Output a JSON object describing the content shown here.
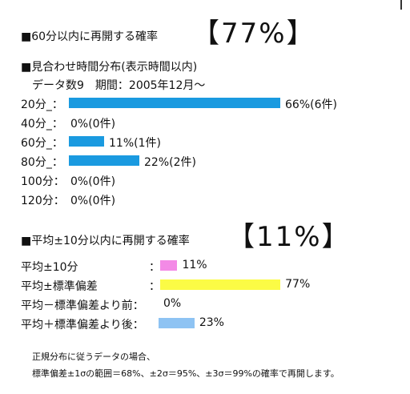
{
  "section1": {
    "heading": "■60分以内に再開する確率",
    "badge": "【77%】"
  },
  "section2": {
    "heading": "■見合わせ時間分布(表示時間以内)",
    "subheading": "データ数9　期間：2005年12月〜"
  },
  "chart_data": [
    {
      "type": "bar",
      "orientation": "horizontal",
      "colors": [
        "#1a9ae0"
      ],
      "categories": [
        "20分_：",
        "40分_：",
        "60分_：",
        "80分_：",
        "100分：",
        "120分："
      ],
      "values": [
        66,
        0,
        11,
        22,
        0,
        0
      ],
      "value_labels": [
        "66%(6件)",
        "0%(0件)",
        "11%(1件)",
        "22%(2件)",
        "0%(0件)",
        "0%(0件)"
      ],
      "counts": [
        6,
        0,
        1,
        2,
        0,
        0
      ]
    },
    {
      "type": "bar",
      "orientation": "horizontal",
      "categories": [
        "平均±10分",
        "平均±標準偏差",
        "平均－標準偏差より前：",
        "平均＋標準偏差より後："
      ],
      "separators": [
        "：",
        "：",
        "",
        ""
      ],
      "values": [
        11,
        77,
        0,
        23
      ],
      "value_labels": [
        "11%",
        "77%",
        "0%",
        "23%"
      ],
      "colors": [
        "#f38ae6",
        "#fbfb45",
        "#ffffff",
        "#8ec3f3"
      ]
    }
  ],
  "section3": {
    "heading": "■平均±10分以内に再開する確率",
    "badge": "【11%】"
  },
  "note": {
    "line1": "正規分布に従うデータの場合、",
    "line2": "標準偏差±1σの範囲＝68%、±2σ＝95%、±3σ＝99%の確率で再開します。"
  }
}
